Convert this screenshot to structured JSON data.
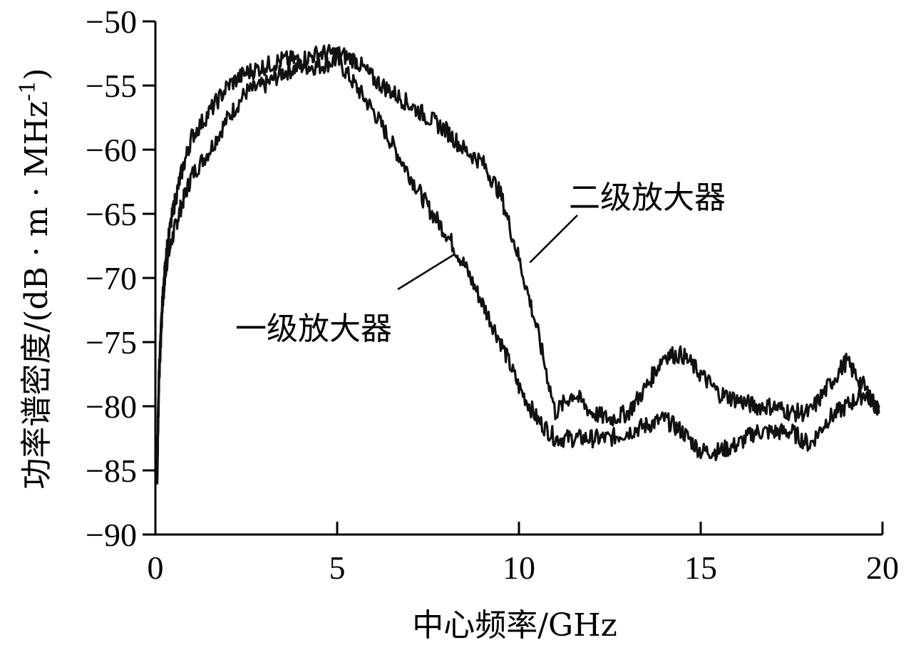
{
  "chart_data": {
    "type": "line",
    "title": "",
    "xlabel": "中心频率/GHz",
    "ylabel": "功率谱密度/(dB·m·MHz-1)",
    "ylabel_parts": {
      "main": "功率谱密度/(dB · m · MHz",
      "sup": "-1",
      "close": ")"
    },
    "xlim": [
      0,
      20
    ],
    "ylim": [
      -90,
      -50
    ],
    "x_ticks": [
      0,
      5,
      10,
      15,
      20
    ],
    "x_tick_labels": [
      "0",
      "5",
      "10",
      "15",
      "20"
    ],
    "y_ticks": [
      -50,
      -55,
      -60,
      -65,
      -70,
      -75,
      -80,
      -85,
      -90
    ],
    "y_tick_labels": [
      "−50",
      "−55",
      "−60",
      "−65",
      "−70",
      "−75",
      "−80",
      "−85",
      "−90"
    ],
    "grid": false,
    "legend": "none",
    "series": [
      {
        "name": "一级放大器",
        "color": "#111111",
        "x": [
          0.05,
          0.1,
          0.2,
          0.3,
          0.5,
          0.7,
          1.0,
          1.5,
          2.0,
          2.5,
          3.0,
          3.5,
          4.0,
          4.5,
          5.0,
          5.5,
          6.0,
          6.5,
          7.0,
          7.5,
          8.0,
          8.5,
          9.0,
          9.5,
          10.0,
          10.5,
          11.0,
          11.5,
          12.0,
          12.5,
          13.0,
          13.5,
          14.0,
          14.5,
          15.0,
          15.5,
          16.0,
          16.5,
          17.0,
          17.5,
          18.0,
          18.5,
          19.0,
          19.5,
          19.9
        ],
        "y": [
          -86.0,
          -78.0,
          -72.0,
          -69.0,
          -66.5,
          -64.5,
          -62.0,
          -60.0,
          -57.5,
          -55.5,
          -55.0,
          -54.0,
          -53.5,
          -53.5,
          -53.0,
          -55.0,
          -57.0,
          -59.5,
          -62.0,
          -64.5,
          -66.5,
          -69.0,
          -72.0,
          -75.0,
          -78.5,
          -81.0,
          -82.5,
          -82.5,
          -82.5,
          -82.5,
          -82.0,
          -81.5,
          -81.0,
          -82.0,
          -83.5,
          -83.5,
          -83.0,
          -82.0,
          -82.0,
          -82.0,
          -83.0,
          -81.0,
          -80.0,
          -79.0,
          -80.0
        ]
      },
      {
        "name": "二级放大器",
        "color": "#111111",
        "x": [
          0.05,
          0.1,
          0.2,
          0.3,
          0.5,
          0.7,
          1.0,
          1.5,
          2.0,
          2.5,
          3.0,
          3.5,
          4.0,
          4.5,
          5.0,
          5.5,
          6.0,
          6.5,
          7.0,
          7.5,
          8.0,
          8.5,
          9.0,
          9.5,
          10.0,
          10.5,
          11.0,
          11.5,
          12.0,
          12.5,
          13.0,
          13.5,
          14.0,
          14.5,
          15.0,
          15.5,
          16.0,
          16.5,
          17.0,
          17.5,
          18.0,
          18.5,
          19.0,
          19.5,
          19.9
        ],
        "y": [
          -84.0,
          -77.0,
          -71.5,
          -68.0,
          -64.5,
          -62.0,
          -59.0,
          -57.0,
          -55.0,
          -54.0,
          -53.5,
          -53.0,
          -53.0,
          -52.5,
          -52.5,
          -53.0,
          -54.5,
          -55.5,
          -56.5,
          -57.5,
          -58.5,
          -60.0,
          -61.0,
          -63.5,
          -68.5,
          -74.0,
          -80.5,
          -79.0,
          -80.5,
          -81.0,
          -80.5,
          -78.5,
          -76.0,
          -76.0,
          -77.5,
          -79.0,
          -79.5,
          -80.0,
          -80.0,
          -80.5,
          -80.5,
          -78.5,
          -76.5,
          -78.5,
          -80.5
        ]
      }
    ],
    "annotations": [
      {
        "text": "二级放大器",
        "series": "二级放大器",
        "x": 10.3,
        "y": -68.8
      },
      {
        "text": "一级放大器",
        "series": "一级放大器",
        "x": 8.2,
        "y": -68.2
      }
    ]
  }
}
